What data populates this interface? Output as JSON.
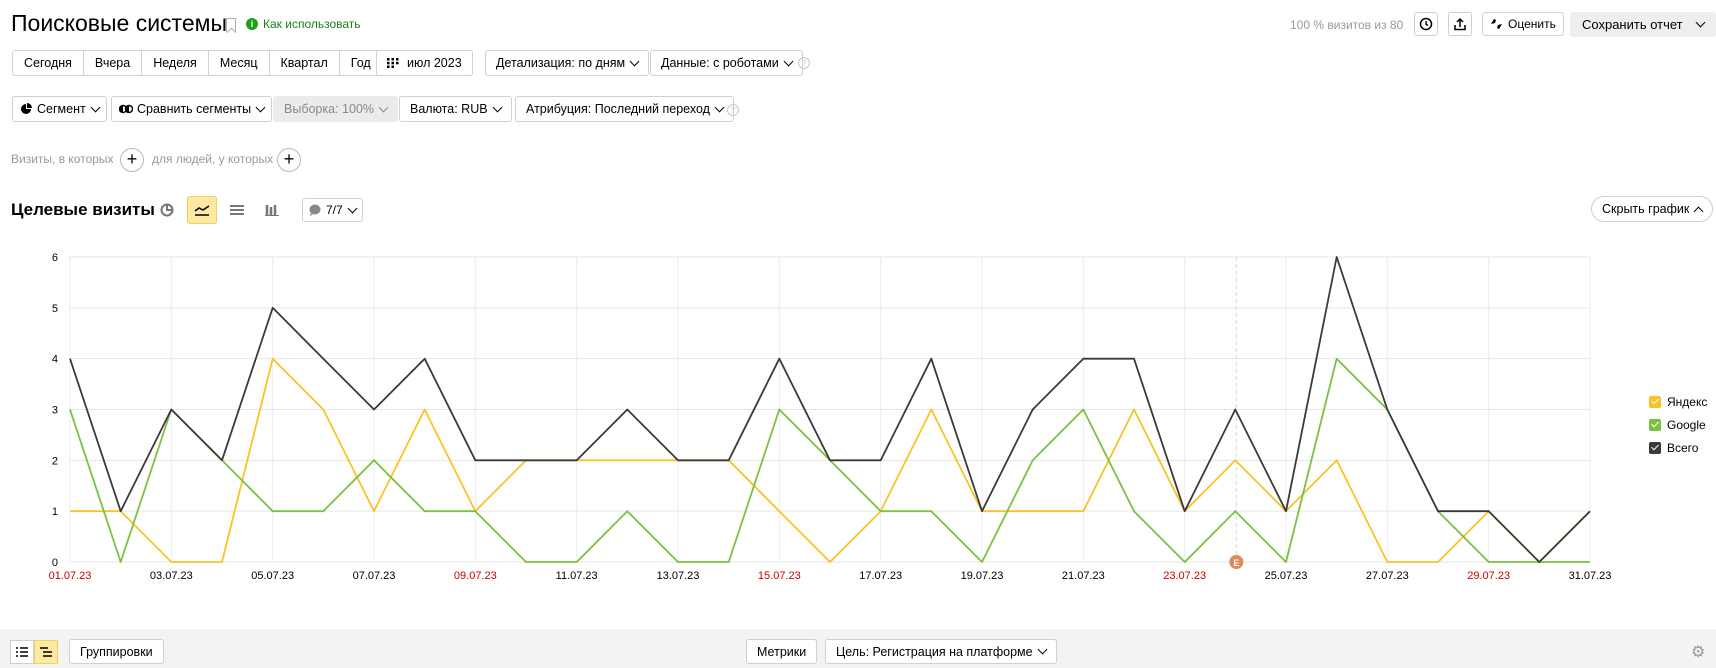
{
  "header": {
    "title": "Поисковые системы",
    "how_to": "Как использовать",
    "visits_note": "100 % визитов из 80",
    "rate_label": "Оценить",
    "save_label": "Сохранить отчет"
  },
  "period": {
    "buttons": [
      "Сегодня",
      "Вчера",
      "Неделя",
      "Месяц",
      "Квартал",
      "Год"
    ],
    "month": "июл 2023",
    "detail": "Детализация: по дням",
    "data_mode": "Данные: с роботами"
  },
  "filters": {
    "segment": "Сегмент",
    "compare": "Сравнить сегменты",
    "sample": "Выборка: 100%",
    "currency": "Валюта: RUB",
    "attribution": "Атрибуция: Последний переход"
  },
  "conditions": {
    "visits_text": "Визиты, в которых",
    "people_text": "для людей, у которых"
  },
  "chart_header": {
    "title": "Целевые визиты",
    "comments": "7/7",
    "hide_chart": "Скрыть график"
  },
  "colors": {
    "yandex": "#f6c428",
    "google": "#7ac143",
    "total": "#3a3a3a",
    "weekend_tick": "#cc0000",
    "accent": "#fde9a3"
  },
  "chart_data": {
    "type": "line",
    "x": [
      "01.07.23",
      "02.07.23",
      "03.07.23",
      "04.07.23",
      "05.07.23",
      "06.07.23",
      "07.07.23",
      "08.07.23",
      "09.07.23",
      "10.07.23",
      "11.07.23",
      "12.07.23",
      "13.07.23",
      "14.07.23",
      "15.07.23",
      "16.07.23",
      "17.07.23",
      "18.07.23",
      "19.07.23",
      "20.07.23",
      "21.07.23",
      "22.07.23",
      "23.07.23",
      "24.07.23",
      "25.07.23",
      "26.07.23",
      "27.07.23",
      "28.07.23",
      "29.07.23",
      "30.07.23",
      "31.07.23"
    ],
    "x_tick_labels": [
      "01.07.23",
      "03.07.23",
      "05.07.23",
      "07.07.23",
      "09.07.23",
      "11.07.23",
      "13.07.23",
      "15.07.23",
      "17.07.23",
      "19.07.23",
      "21.07.23",
      "23.07.23",
      "25.07.23",
      "27.07.23",
      "29.07.23",
      "31.07.23"
    ],
    "weekend_ticks": [
      "01.07.23",
      "09.07.23",
      "15.07.23",
      "23.07.23",
      "29.07.23"
    ],
    "ylim": [
      0,
      6
    ],
    "y_ticks": [
      0,
      1,
      2,
      3,
      4,
      5,
      6
    ],
    "grid": true,
    "legend_position": "right",
    "annotation": {
      "x": "24.07.23",
      "label": "E"
    },
    "series": [
      {
        "name": "Яндекс",
        "color": "#f6c428",
        "values": [
          1,
          1,
          0,
          0,
          4,
          3,
          1,
          3,
          1,
          2,
          2,
          2,
          2,
          2,
          1,
          0,
          1,
          3,
          1,
          1,
          1,
          3,
          1,
          2,
          1,
          2,
          0,
          0,
          1,
          0,
          1
        ]
      },
      {
        "name": "Google",
        "color": "#7ac143",
        "values": [
          3,
          0,
          3,
          2,
          1,
          1,
          2,
          1,
          1,
          0,
          0,
          1,
          0,
          0,
          3,
          2,
          1,
          1,
          0,
          2,
          3,
          1,
          0,
          1,
          0,
          4,
          3,
          1,
          0,
          0,
          0
        ]
      },
      {
        "name": "Всего",
        "color": "#3a3a3a",
        "values": [
          4,
          1,
          3,
          2,
          5,
          4,
          3,
          4,
          2,
          2,
          2,
          3,
          2,
          2,
          4,
          2,
          2,
          4,
          1,
          3,
          4,
          4,
          1,
          3,
          1,
          6,
          3,
          1,
          1,
          0,
          1
        ]
      }
    ]
  },
  "bottom": {
    "groupings": "Группировки",
    "metrics": "Метрики",
    "goal": "Цель: Регистрация на платформе"
  }
}
